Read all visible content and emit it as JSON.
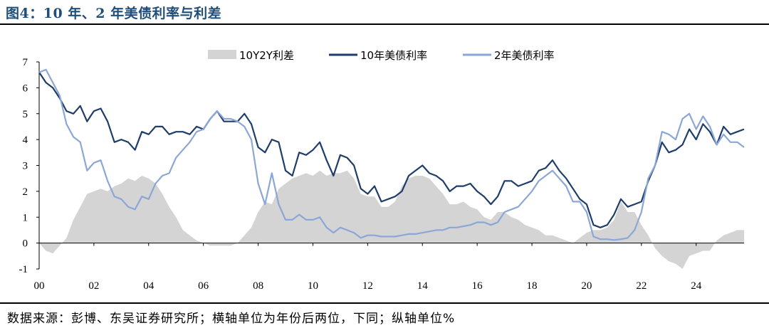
{
  "figure": {
    "title": "图4：10 年、2 年美债利率与利差",
    "source": "数据来源：彭博、东吴证券研究所；横轴单位为年份后两位，下同；纵轴单位%"
  },
  "chart_data": {
    "type": "line",
    "title": "",
    "xlabel": "",
    "ylabel": "",
    "xlim": [
      2000,
      2025.75
    ],
    "ylim": [
      -1,
      7
    ],
    "y_ticks": [
      7,
      6,
      5,
      4,
      3,
      2,
      1,
      0,
      -1
    ],
    "x_ticks": [
      {
        "value": 2000,
        "label": "00"
      },
      {
        "value": 2002,
        "label": "02"
      },
      {
        "value": 2004,
        "label": "04"
      },
      {
        "value": 2006,
        "label": "06"
      },
      {
        "value": 2008,
        "label": "08"
      },
      {
        "value": 2010,
        "label": "10"
      },
      {
        "value": 2012,
        "label": "12"
      },
      {
        "value": 2014,
        "label": "14"
      },
      {
        "value": 2016,
        "label": "16"
      },
      {
        "value": 2018,
        "label": "18"
      },
      {
        "value": 2020,
        "label": "20"
      },
      {
        "value": 2022,
        "label": "22"
      },
      {
        "value": 2024,
        "label": "24"
      }
    ],
    "grid": false,
    "legend_position": "top",
    "series": [
      {
        "name": "10Y2Y利差",
        "kind": "area",
        "color": "#d4d4d4",
        "x": [
          2000.0,
          2000.25,
          2000.5,
          2000.75,
          2001.0,
          2001.25,
          2001.5,
          2001.75,
          2002.0,
          2002.25,
          2002.5,
          2002.75,
          2003.0,
          2003.25,
          2003.5,
          2003.75,
          2004.0,
          2004.25,
          2004.5,
          2004.75,
          2005.0,
          2005.25,
          2005.5,
          2005.75,
          2006.0,
          2006.25,
          2006.5,
          2006.75,
          2007.0,
          2007.25,
          2007.5,
          2007.75,
          2008.0,
          2008.25,
          2008.5,
          2008.75,
          2009.0,
          2009.25,
          2009.5,
          2009.75,
          2010.0,
          2010.25,
          2010.5,
          2010.75,
          2011.0,
          2011.25,
          2011.5,
          2011.75,
          2012.0,
          2012.25,
          2012.5,
          2012.75,
          2013.0,
          2013.25,
          2013.5,
          2013.75,
          2014.0,
          2014.25,
          2014.5,
          2014.75,
          2015.0,
          2015.25,
          2015.5,
          2015.75,
          2016.0,
          2016.25,
          2016.5,
          2016.75,
          2017.0,
          2017.25,
          2017.5,
          2017.75,
          2018.0,
          2018.25,
          2018.5,
          2018.75,
          2019.0,
          2019.25,
          2019.5,
          2019.75,
          2020.0,
          2020.25,
          2020.5,
          2020.75,
          2021.0,
          2021.25,
          2021.5,
          2021.75,
          2022.0,
          2022.25,
          2022.5,
          2022.75,
          2023.0,
          2023.25,
          2023.5,
          2023.75,
          2024.0,
          2024.25,
          2024.5,
          2024.75,
          2025.0,
          2025.25,
          2025.5,
          2025.75
        ],
        "values": [
          0.0,
          -0.3,
          -0.4,
          -0.1,
          0.2,
          0.9,
          1.4,
          1.9,
          2.0,
          2.1,
          2.0,
          2.2,
          2.3,
          2.5,
          2.4,
          2.6,
          2.5,
          2.3,
          1.9,
          1.4,
          1.0,
          0.5,
          0.3,
          0.1,
          0.0,
          -0.1,
          -0.1,
          -0.1,
          -0.1,
          0.0,
          0.3,
          0.6,
          1.2,
          1.6,
          1.5,
          2.1,
          2.3,
          2.5,
          2.6,
          2.7,
          2.6,
          2.8,
          2.6,
          2.7,
          2.7,
          2.8,
          2.5,
          1.9,
          1.8,
          1.8,
          1.4,
          1.4,
          1.6,
          2.2,
          2.5,
          2.6,
          2.6,
          2.5,
          2.2,
          1.9,
          1.5,
          1.5,
          1.6,
          1.4,
          1.3,
          1.0,
          0.9,
          1.2,
          1.2,
          1.0,
          0.9,
          0.7,
          0.6,
          0.5,
          0.3,
          0.3,
          0.2,
          0.1,
          0.0,
          0.2,
          0.4,
          0.5,
          0.5,
          0.6,
          0.9,
          1.6,
          1.2,
          1.2,
          0.7,
          0.3,
          -0.2,
          -0.5,
          -0.7,
          -0.8,
          -1.0,
          -0.5,
          -0.4,
          -0.3,
          -0.3,
          0.1,
          0.3,
          0.4,
          0.5,
          0.5
        ]
      },
      {
        "name": "10年美债利率",
        "kind": "line",
        "color": "#1f3d6b",
        "x": [
          2000.0,
          2000.25,
          2000.5,
          2000.75,
          2001.0,
          2001.25,
          2001.5,
          2001.75,
          2002.0,
          2002.25,
          2002.5,
          2002.75,
          2003.0,
          2003.25,
          2003.5,
          2003.75,
          2004.0,
          2004.25,
          2004.5,
          2004.75,
          2005.0,
          2005.25,
          2005.5,
          2005.75,
          2006.0,
          2006.25,
          2006.5,
          2006.75,
          2007.0,
          2007.25,
          2007.5,
          2007.75,
          2008.0,
          2008.25,
          2008.5,
          2008.75,
          2009.0,
          2009.25,
          2009.5,
          2009.75,
          2010.0,
          2010.25,
          2010.5,
          2010.75,
          2011.0,
          2011.25,
          2011.5,
          2011.75,
          2012.0,
          2012.25,
          2012.5,
          2012.75,
          2013.0,
          2013.25,
          2013.5,
          2013.75,
          2014.0,
          2014.25,
          2014.5,
          2014.75,
          2015.0,
          2015.25,
          2015.5,
          2015.75,
          2016.0,
          2016.25,
          2016.5,
          2016.75,
          2017.0,
          2017.25,
          2017.5,
          2017.75,
          2018.0,
          2018.25,
          2018.5,
          2018.75,
          2019.0,
          2019.25,
          2019.5,
          2019.75,
          2020.0,
          2020.25,
          2020.5,
          2020.75,
          2021.0,
          2021.25,
          2021.5,
          2021.75,
          2022.0,
          2022.25,
          2022.5,
          2022.75,
          2023.0,
          2023.25,
          2023.5,
          2023.75,
          2024.0,
          2024.25,
          2024.5,
          2024.75,
          2025.0,
          2025.25,
          2025.5,
          2025.75
        ],
        "values": [
          6.6,
          6.2,
          6.0,
          5.6,
          5.1,
          5.0,
          5.3,
          4.7,
          5.1,
          5.2,
          4.7,
          3.9,
          4.0,
          3.9,
          3.6,
          4.3,
          4.2,
          4.5,
          4.5,
          4.2,
          4.3,
          4.3,
          4.2,
          4.5,
          4.4,
          4.8,
          5.1,
          4.7,
          4.7,
          4.7,
          5.0,
          4.6,
          3.7,
          3.5,
          4.0,
          3.9,
          2.8,
          2.6,
          3.5,
          3.4,
          3.6,
          3.9,
          3.2,
          2.6,
          3.4,
          3.3,
          3.0,
          2.1,
          1.9,
          2.2,
          1.6,
          1.7,
          1.8,
          2.0,
          2.6,
          2.8,
          3.0,
          2.7,
          2.6,
          2.4,
          2.0,
          2.2,
          2.2,
          2.3,
          2.0,
          1.8,
          1.5,
          1.8,
          2.4,
          2.4,
          2.2,
          2.3,
          2.4,
          2.8,
          2.9,
          3.2,
          2.8,
          2.5,
          2.1,
          1.7,
          1.5,
          0.7,
          0.6,
          0.7,
          1.1,
          1.7,
          1.4,
          1.5,
          1.6,
          2.4,
          3.0,
          3.9,
          3.5,
          3.6,
          3.8,
          4.4,
          4.0,
          4.6,
          4.3,
          3.8,
          4.5,
          4.2,
          4.3,
          4.4
        ]
      },
      {
        "name": "2年美债利率",
        "kind": "line",
        "color": "#8ba7d6",
        "x": [
          2000.0,
          2000.25,
          2000.5,
          2000.75,
          2001.0,
          2001.25,
          2001.5,
          2001.75,
          2002.0,
          2002.25,
          2002.5,
          2002.75,
          2003.0,
          2003.25,
          2003.5,
          2003.75,
          2004.0,
          2004.25,
          2004.5,
          2004.75,
          2005.0,
          2005.25,
          2005.5,
          2005.75,
          2006.0,
          2006.25,
          2006.5,
          2006.75,
          2007.0,
          2007.25,
          2007.5,
          2007.75,
          2008.0,
          2008.25,
          2008.5,
          2008.75,
          2009.0,
          2009.25,
          2009.5,
          2009.75,
          2010.0,
          2010.25,
          2010.5,
          2010.75,
          2011.0,
          2011.25,
          2011.5,
          2011.75,
          2012.0,
          2012.25,
          2012.5,
          2012.75,
          2013.0,
          2013.25,
          2013.5,
          2013.75,
          2014.0,
          2014.25,
          2014.5,
          2014.75,
          2015.0,
          2015.25,
          2015.5,
          2015.75,
          2016.0,
          2016.25,
          2016.5,
          2016.75,
          2017.0,
          2017.25,
          2017.5,
          2017.75,
          2018.0,
          2018.25,
          2018.5,
          2018.75,
          2019.0,
          2019.25,
          2019.5,
          2019.75,
          2020.0,
          2020.25,
          2020.5,
          2020.75,
          2021.0,
          2021.25,
          2021.5,
          2021.75,
          2022.0,
          2022.25,
          2022.5,
          2022.75,
          2023.0,
          2023.25,
          2023.5,
          2023.75,
          2024.0,
          2024.25,
          2024.5,
          2024.75,
          2025.0,
          2025.25,
          2025.5,
          2025.75
        ],
        "values": [
          6.6,
          6.7,
          6.2,
          5.7,
          4.6,
          4.1,
          3.9,
          2.8,
          3.1,
          3.2,
          2.4,
          1.8,
          1.7,
          1.4,
          1.3,
          1.8,
          1.7,
          2.3,
          2.6,
          2.7,
          3.3,
          3.6,
          3.9,
          4.3,
          4.4,
          4.8,
          5.1,
          4.8,
          4.8,
          4.7,
          4.5,
          4.0,
          2.3,
          1.5,
          2.7,
          1.5,
          0.9,
          0.9,
          1.1,
          0.9,
          0.9,
          1.0,
          0.6,
          0.4,
          0.6,
          0.5,
          0.4,
          0.2,
          0.3,
          0.3,
          0.25,
          0.25,
          0.25,
          0.3,
          0.35,
          0.35,
          0.4,
          0.45,
          0.5,
          0.5,
          0.6,
          0.6,
          0.65,
          0.7,
          0.8,
          0.8,
          0.7,
          0.8,
          1.2,
          1.3,
          1.4,
          1.7,
          2.0,
          2.4,
          2.6,
          2.8,
          2.5,
          2.2,
          1.6,
          1.6,
          1.2,
          0.25,
          0.15,
          0.15,
          0.12,
          0.15,
          0.2,
          0.5,
          1.2,
          2.5,
          3.0,
          4.3,
          4.2,
          4.0,
          4.8,
          5.0,
          4.4,
          4.9,
          4.5,
          3.8,
          4.2,
          3.9,
          3.9,
          3.7
        ]
      }
    ]
  }
}
